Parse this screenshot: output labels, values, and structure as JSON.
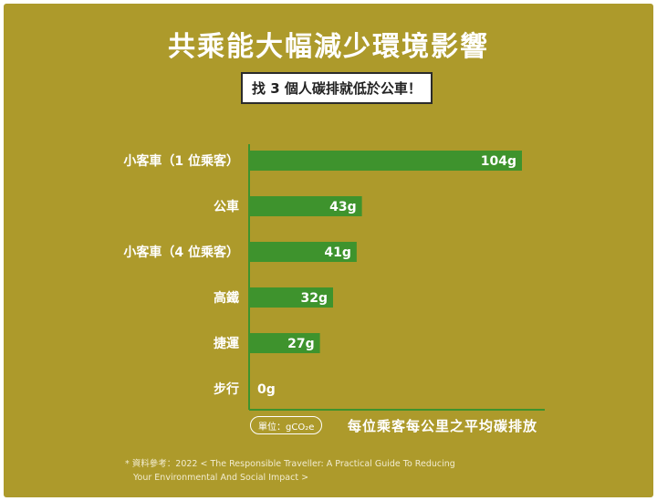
{
  "title": "共乘能大幅減少環境影響",
  "subtitle": "找 3 個人碳排就低於公車！",
  "unit_label": "單位：gCO₂e",
  "axis_title": "每位乘客每公里之平均碳排放",
  "source_line1": "* 資料參考：2022 < The Responsible Traveller: A Practical Guide To Reducing",
  "source_line2": "Your Environmental And Social Impact >",
  "colors": {
    "background": "#ad9a2b",
    "bar": "#3e932d",
    "axis": "#3e932d",
    "text": "#ffffff"
  },
  "chart_data": {
    "type": "bar",
    "orientation": "horizontal",
    "categories": [
      "小客車（1 位乘客）",
      "公車",
      "小客車（4 位乘客）",
      "高鐵",
      "捷運",
      "步行"
    ],
    "values": [
      104,
      43,
      41,
      32,
      27,
      0
    ],
    "value_labels": [
      "104g",
      "43g",
      "41g",
      "32g",
      "27g",
      "0g"
    ],
    "unit": "gCO₂e",
    "xlabel": "每位乘客每公里之平均碳排放",
    "xlim": [
      0,
      104
    ],
    "grid": false,
    "legend": "none"
  }
}
